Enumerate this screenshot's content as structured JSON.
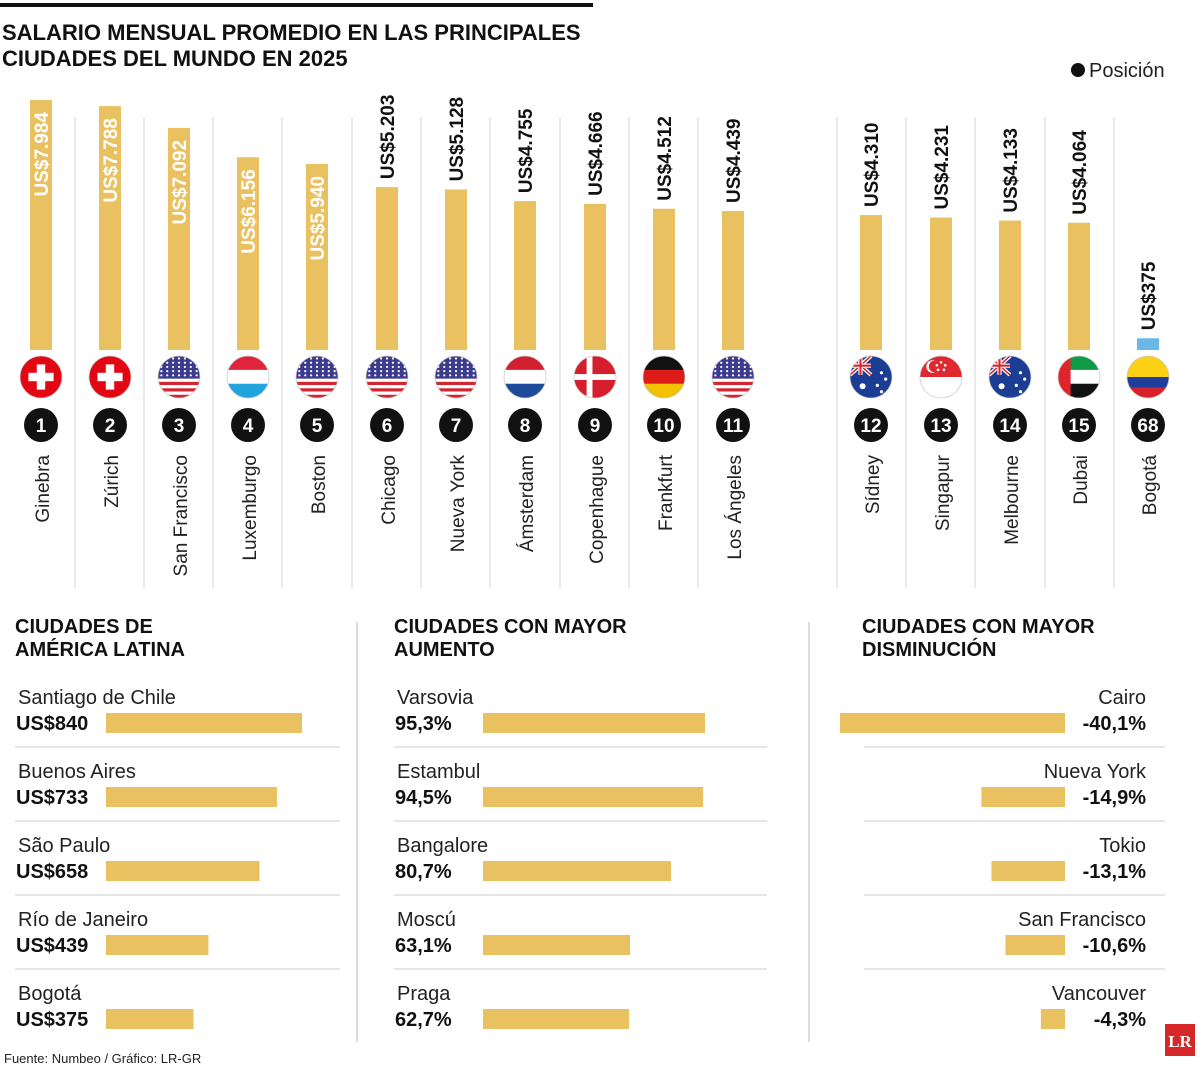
{
  "chart_data": [
    {
      "type": "bar",
      "title": "SALARIO MENSUAL PROMEDIO EN LAS PRINCIPALES CIUDADES DEL MUNDO EN 2025",
      "title_lines": [
        "SALARIO MENSUAL PROMEDIO EN LAS PRINCIPALES",
        "CIUDADES DEL MUNDO EN 2025"
      ],
      "legend": {
        "label": "Posición",
        "placement": "top-right"
      },
      "grid": false,
      "ylim": [
        0,
        7984
      ],
      "colors": {
        "bar": "#E9C160",
        "highlight": "#6BB8E8"
      },
      "categories": [
        "Ginebra",
        "Zúrich",
        "San Francisco",
        "Luxemburgo",
        "Boston",
        "Chicago",
        "Nueva York",
        "Ámsterdam",
        "Copenhague",
        "Frankfurt",
        "Los Ángeles",
        "Sídney",
        "Singapur",
        "Melbourne",
        "Dubai",
        "Bogotá"
      ],
      "values": [
        7984,
        7788,
        7092,
        6156,
        5940,
        5203,
        5128,
        4755,
        4666,
        4512,
        4439,
        4310,
        4231,
        4133,
        4064,
        375
      ],
      "labels": [
        "US$7.984",
        "US$7.788",
        "US$7.092",
        "US$6.156",
        "US$5.940",
        "US$5.203",
        "US$5.128",
        "US$4.755",
        "US$4.666",
        "US$4.512",
        "US$4.439",
        "US$4.310",
        "US$4.231",
        "US$4.133",
        "US$4.064",
        "US$375"
      ],
      "positions": [
        "1",
        "2",
        "3",
        "4",
        "5",
        "6",
        "7",
        "8",
        "9",
        "10",
        "11",
        "12",
        "13",
        "14",
        "15",
        "68"
      ],
      "flags": [
        "switzerland-flag-icon",
        "switzerland-flag-icon",
        "usa-flag-icon",
        "luxembourg-flag-icon",
        "usa-flag-icon",
        "usa-flag-icon",
        "usa-flag-icon",
        "netherlands-flag-icon",
        "denmark-flag-icon",
        "germany-flag-icon",
        "usa-flag-icon",
        "australia-flag-icon",
        "singapore-flag-icon",
        "australia-flag-icon",
        "uae-flag-icon",
        "colombia-flag-icon"
      ]
    },
    {
      "type": "bar",
      "title_lines": [
        "CIUDADES DE",
        "AMÉRICA LATINA"
      ],
      "categories": [
        "Santiago de Chile",
        "Buenos Aires",
        "São Paulo",
        "Río de Janeiro",
        "Bogotá"
      ],
      "values": [
        840,
        733,
        658,
        439,
        375
      ],
      "labels": [
        "US$840",
        "US$733",
        "US$658",
        "US$439",
        "US$375"
      ]
    },
    {
      "type": "bar",
      "title_lines": [
        "CIUDADES CON MAYOR",
        "AUMENTO"
      ],
      "categories": [
        "Varsovia",
        "Estambul",
        "Bangalore",
        "Moscú",
        "Praga"
      ],
      "values": [
        95.3,
        94.5,
        80.7,
        63.1,
        62.7
      ],
      "labels": [
        "95,3%",
        "94,5%",
        "80,7%",
        "63,1%",
        "62,7%"
      ]
    },
    {
      "type": "bar",
      "title_lines": [
        "CIUDADES CON MAYOR",
        "DISMINUCIÓN"
      ],
      "categories": [
        "Cairo",
        "Nueva York",
        "Tokio",
        "San Francisco",
        "Vancouver"
      ],
      "values": [
        -40.1,
        -14.9,
        -13.1,
        -10.6,
        -4.3
      ],
      "labels": [
        "-40,1%",
        "-14,9%",
        "-13,1%",
        "-10,6%",
        "-4,3%"
      ]
    }
  ],
  "footer": {
    "source": "Fuente: Numbeo / Gráfico: LR-GR",
    "logo": "LR"
  }
}
